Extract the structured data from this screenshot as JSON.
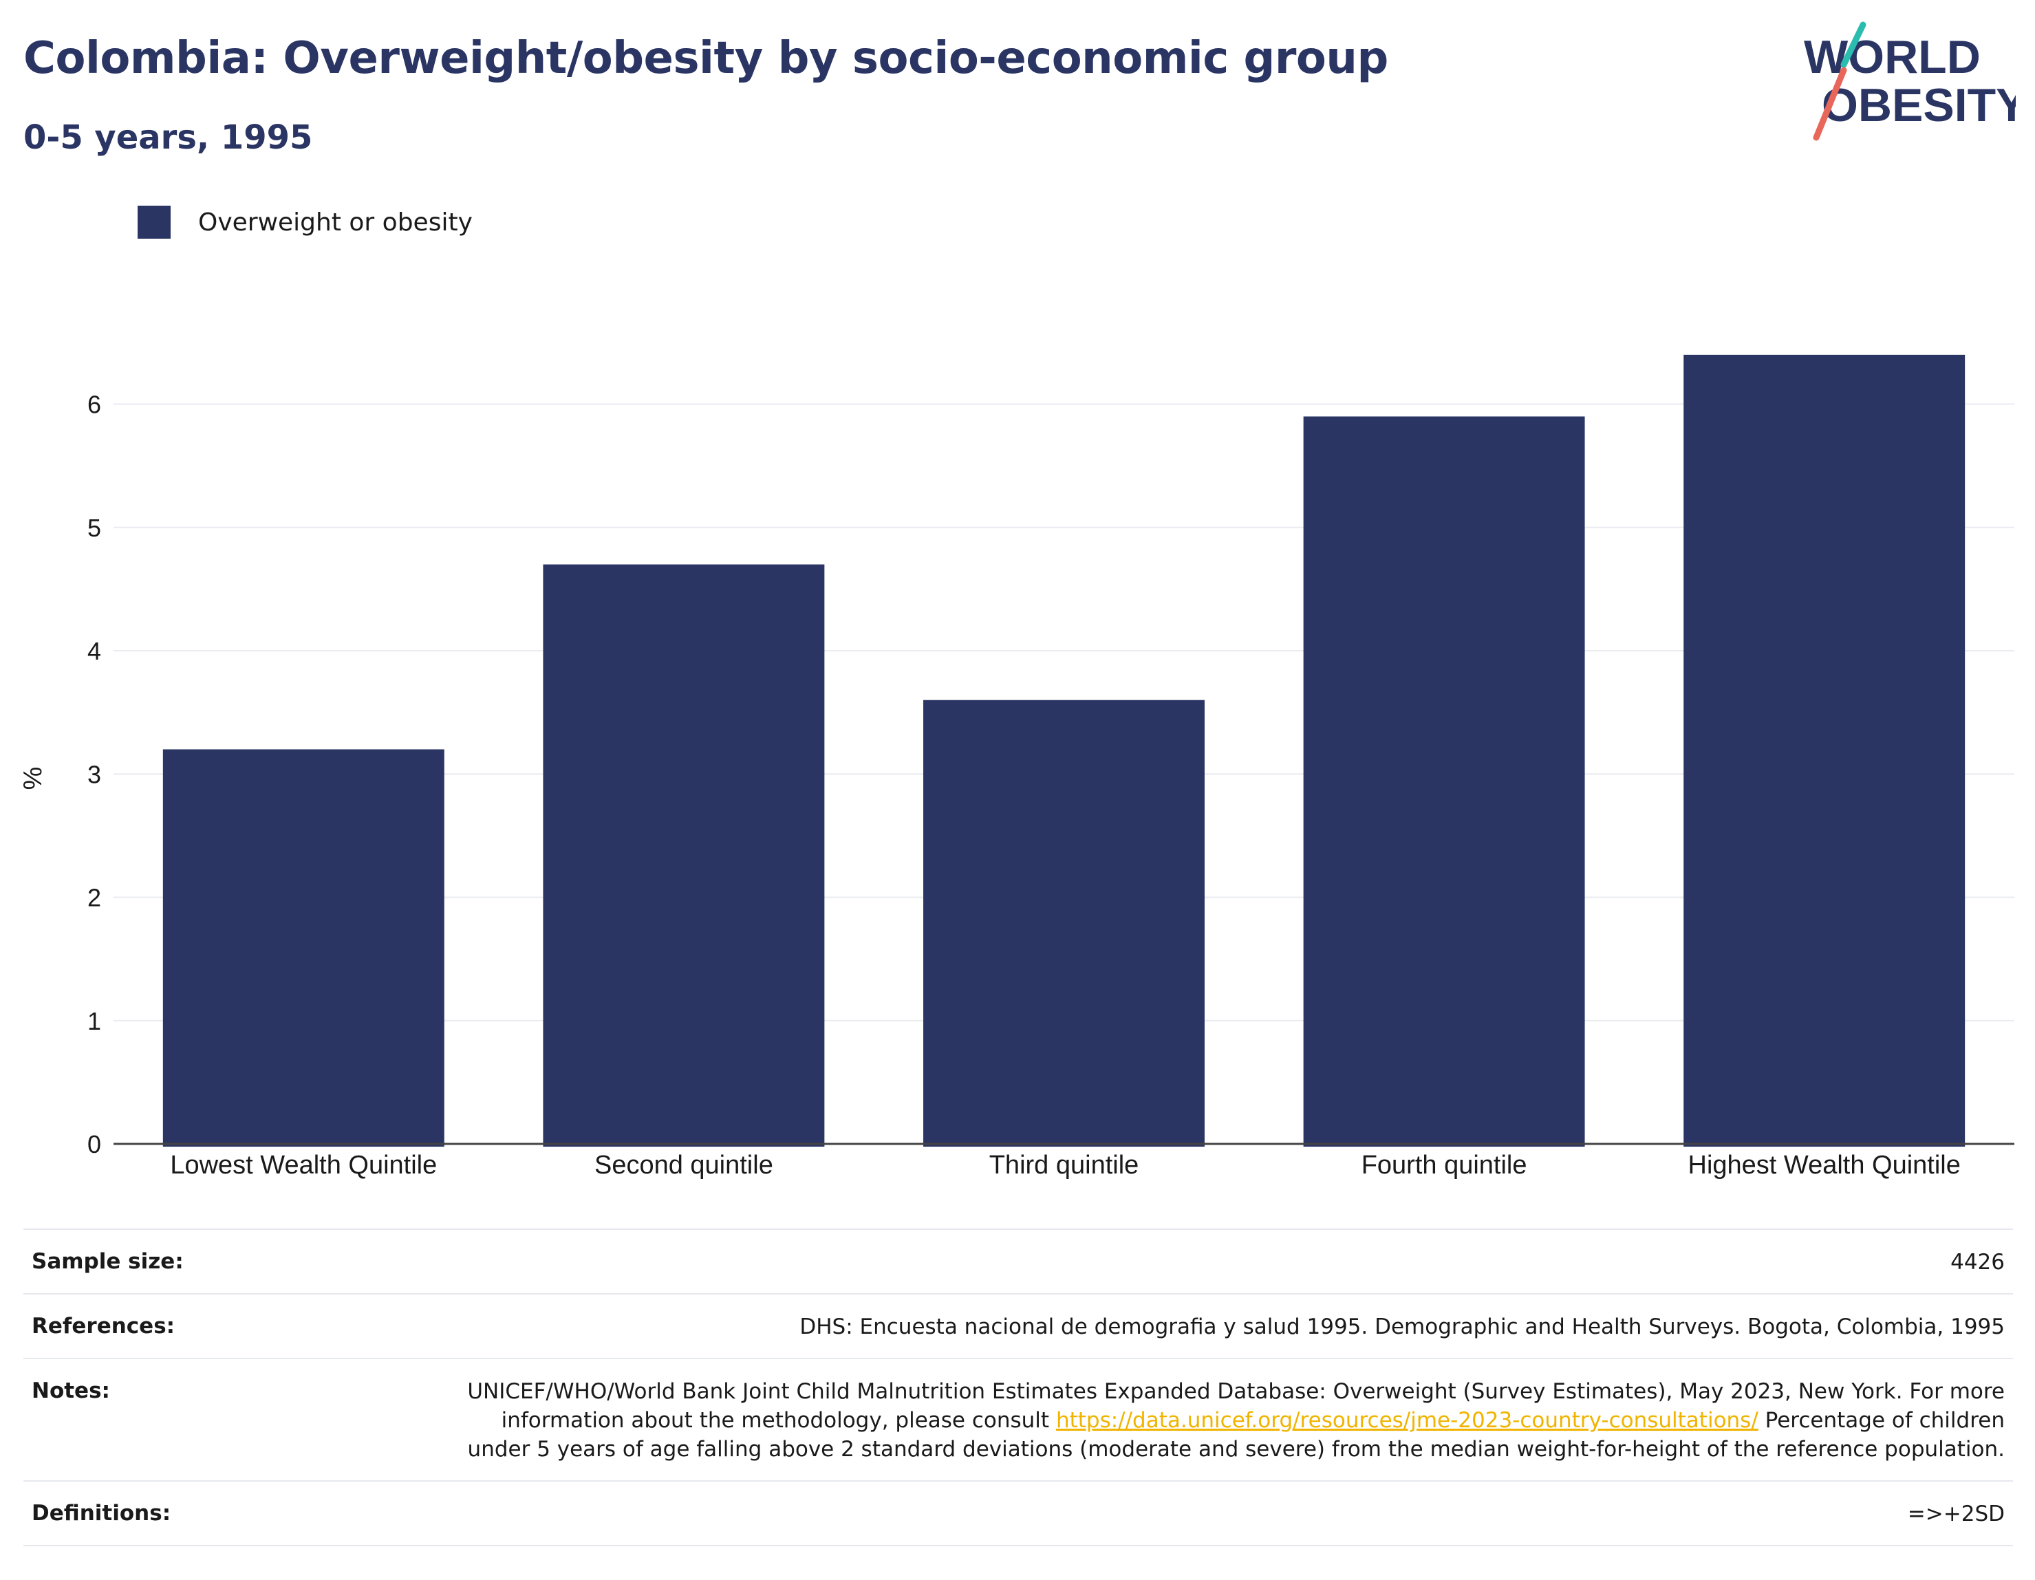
{
  "header": {
    "title": "Colombia: Overweight/obesity by socio-economic group",
    "subtitle": "0-5 years, 1995"
  },
  "logo": {
    "line1": "WORLD",
    "line2": "OBESITY",
    "colors": {
      "text": "#2a3563",
      "slash_top": "#2bbcb0",
      "slash_bottom": "#e8665a"
    }
  },
  "legend": {
    "items": [
      {
        "label": "Overweight or obesity",
        "color": "#2a3563"
      }
    ]
  },
  "chart_data": {
    "type": "bar",
    "categories": [
      "Lowest Wealth Quintile",
      "Second quintile",
      "Third quintile",
      "Fourth quintile",
      "Highest Wealth Quintile"
    ],
    "series": [
      {
        "name": "Overweight or obesity",
        "values": [
          3.2,
          4.7,
          3.6,
          5.9,
          6.4
        ],
        "color": "#2a3563"
      }
    ],
    "xlabel": "",
    "ylabel": "%",
    "ylim": [
      0,
      6.6
    ],
    "yticks": [
      0,
      1,
      2,
      3,
      4,
      5,
      6
    ],
    "grid": true,
    "legend_position": "top-left"
  },
  "info": {
    "sample_size": {
      "label": "Sample size:",
      "value": "4426"
    },
    "references": {
      "label": "References:",
      "value": "DHS: Encuesta nacional de demografia y salud 1995. Demographic and Health Surveys. Bogota, Colombia, 1995"
    },
    "notes": {
      "label": "Notes:",
      "text_before_link": "UNICEF/WHO/World Bank Joint Child Malnutrition Estimates Expanded Database: Overweight (Survey Estimates), May 2023, New York. For more information about the methodology, please consult ",
      "link": "https://data.unicef.org/resources/jme-2023-country-consultations/",
      "text_after_link": " Percentage of children under 5 years of age falling above 2 standard deviations (moderate and severe) from the median weight-for-height of the reference population."
    },
    "definitions": {
      "label": "Definitions:",
      "value": "=>+2SD"
    }
  }
}
